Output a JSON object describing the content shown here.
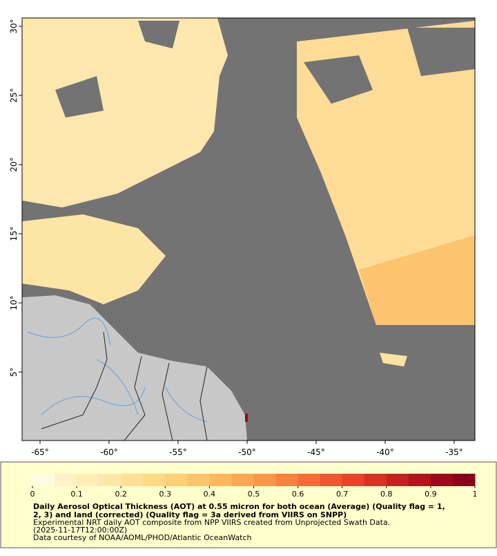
{
  "map": {
    "lon_range": [
      -66.3,
      -33.5
    ],
    "lat_range": [
      0.05,
      30.6
    ],
    "lon_ticks": [
      {
        "value": -65,
        "label": "-65°"
      },
      {
        "value": -60,
        "label": "-60°"
      },
      {
        "value": -55,
        "label": "-55°"
      },
      {
        "value": -50,
        "label": "-50°"
      },
      {
        "value": -45,
        "label": "-45°"
      },
      {
        "value": -40,
        "label": "-40°"
      },
      {
        "value": -35,
        "label": "-35°"
      }
    ],
    "lat_ticks": [
      {
        "value": 30,
        "label": "30°"
      },
      {
        "value": 25,
        "label": "25°"
      },
      {
        "value": 20,
        "label": "20°"
      },
      {
        "value": 15,
        "label": "15°"
      },
      {
        "value": 10,
        "label": "10°"
      },
      {
        "value": 5,
        "label": "5°"
      }
    ],
    "colorbar": {
      "range": [
        0,
        1
      ],
      "ticks": [
        0,
        0.1,
        0.2,
        0.3,
        0.4,
        0.5,
        0.6,
        0.7,
        0.8,
        0.9,
        1
      ],
      "colors": [
        "#fffbe0",
        "#fff2c8",
        "#ffecb6",
        "#fee6a6",
        "#fee096",
        "#fed986",
        "#fdd078",
        "#fdc46a",
        "#fdb85e",
        "#fca852",
        "#fb9648",
        "#f8823e",
        "#f46d36",
        "#ee582f",
        "#e44429",
        "#d63224",
        "#c4221f",
        "#b0141c",
        "#9b0a1a",
        "#860418"
      ]
    },
    "caption": {
      "title": "Daily Aerosol Optical Thickness (AOT) at 0.55 micron for both ocean (Average) (Quality flag = 1, 2, 3) and land (corrected) (Quality flag = 3a derived from VIIRS on SNPP)",
      "lines": [
        "Experimental NRT daily AOT composite from NPP VIIRS created from Unprojected Swath Data.",
        "(2025-11-17T12:00:00Z)",
        "Data courtesy of NOAA/AOML/PHOD/Atlantic OceanWatch"
      ]
    }
  }
}
